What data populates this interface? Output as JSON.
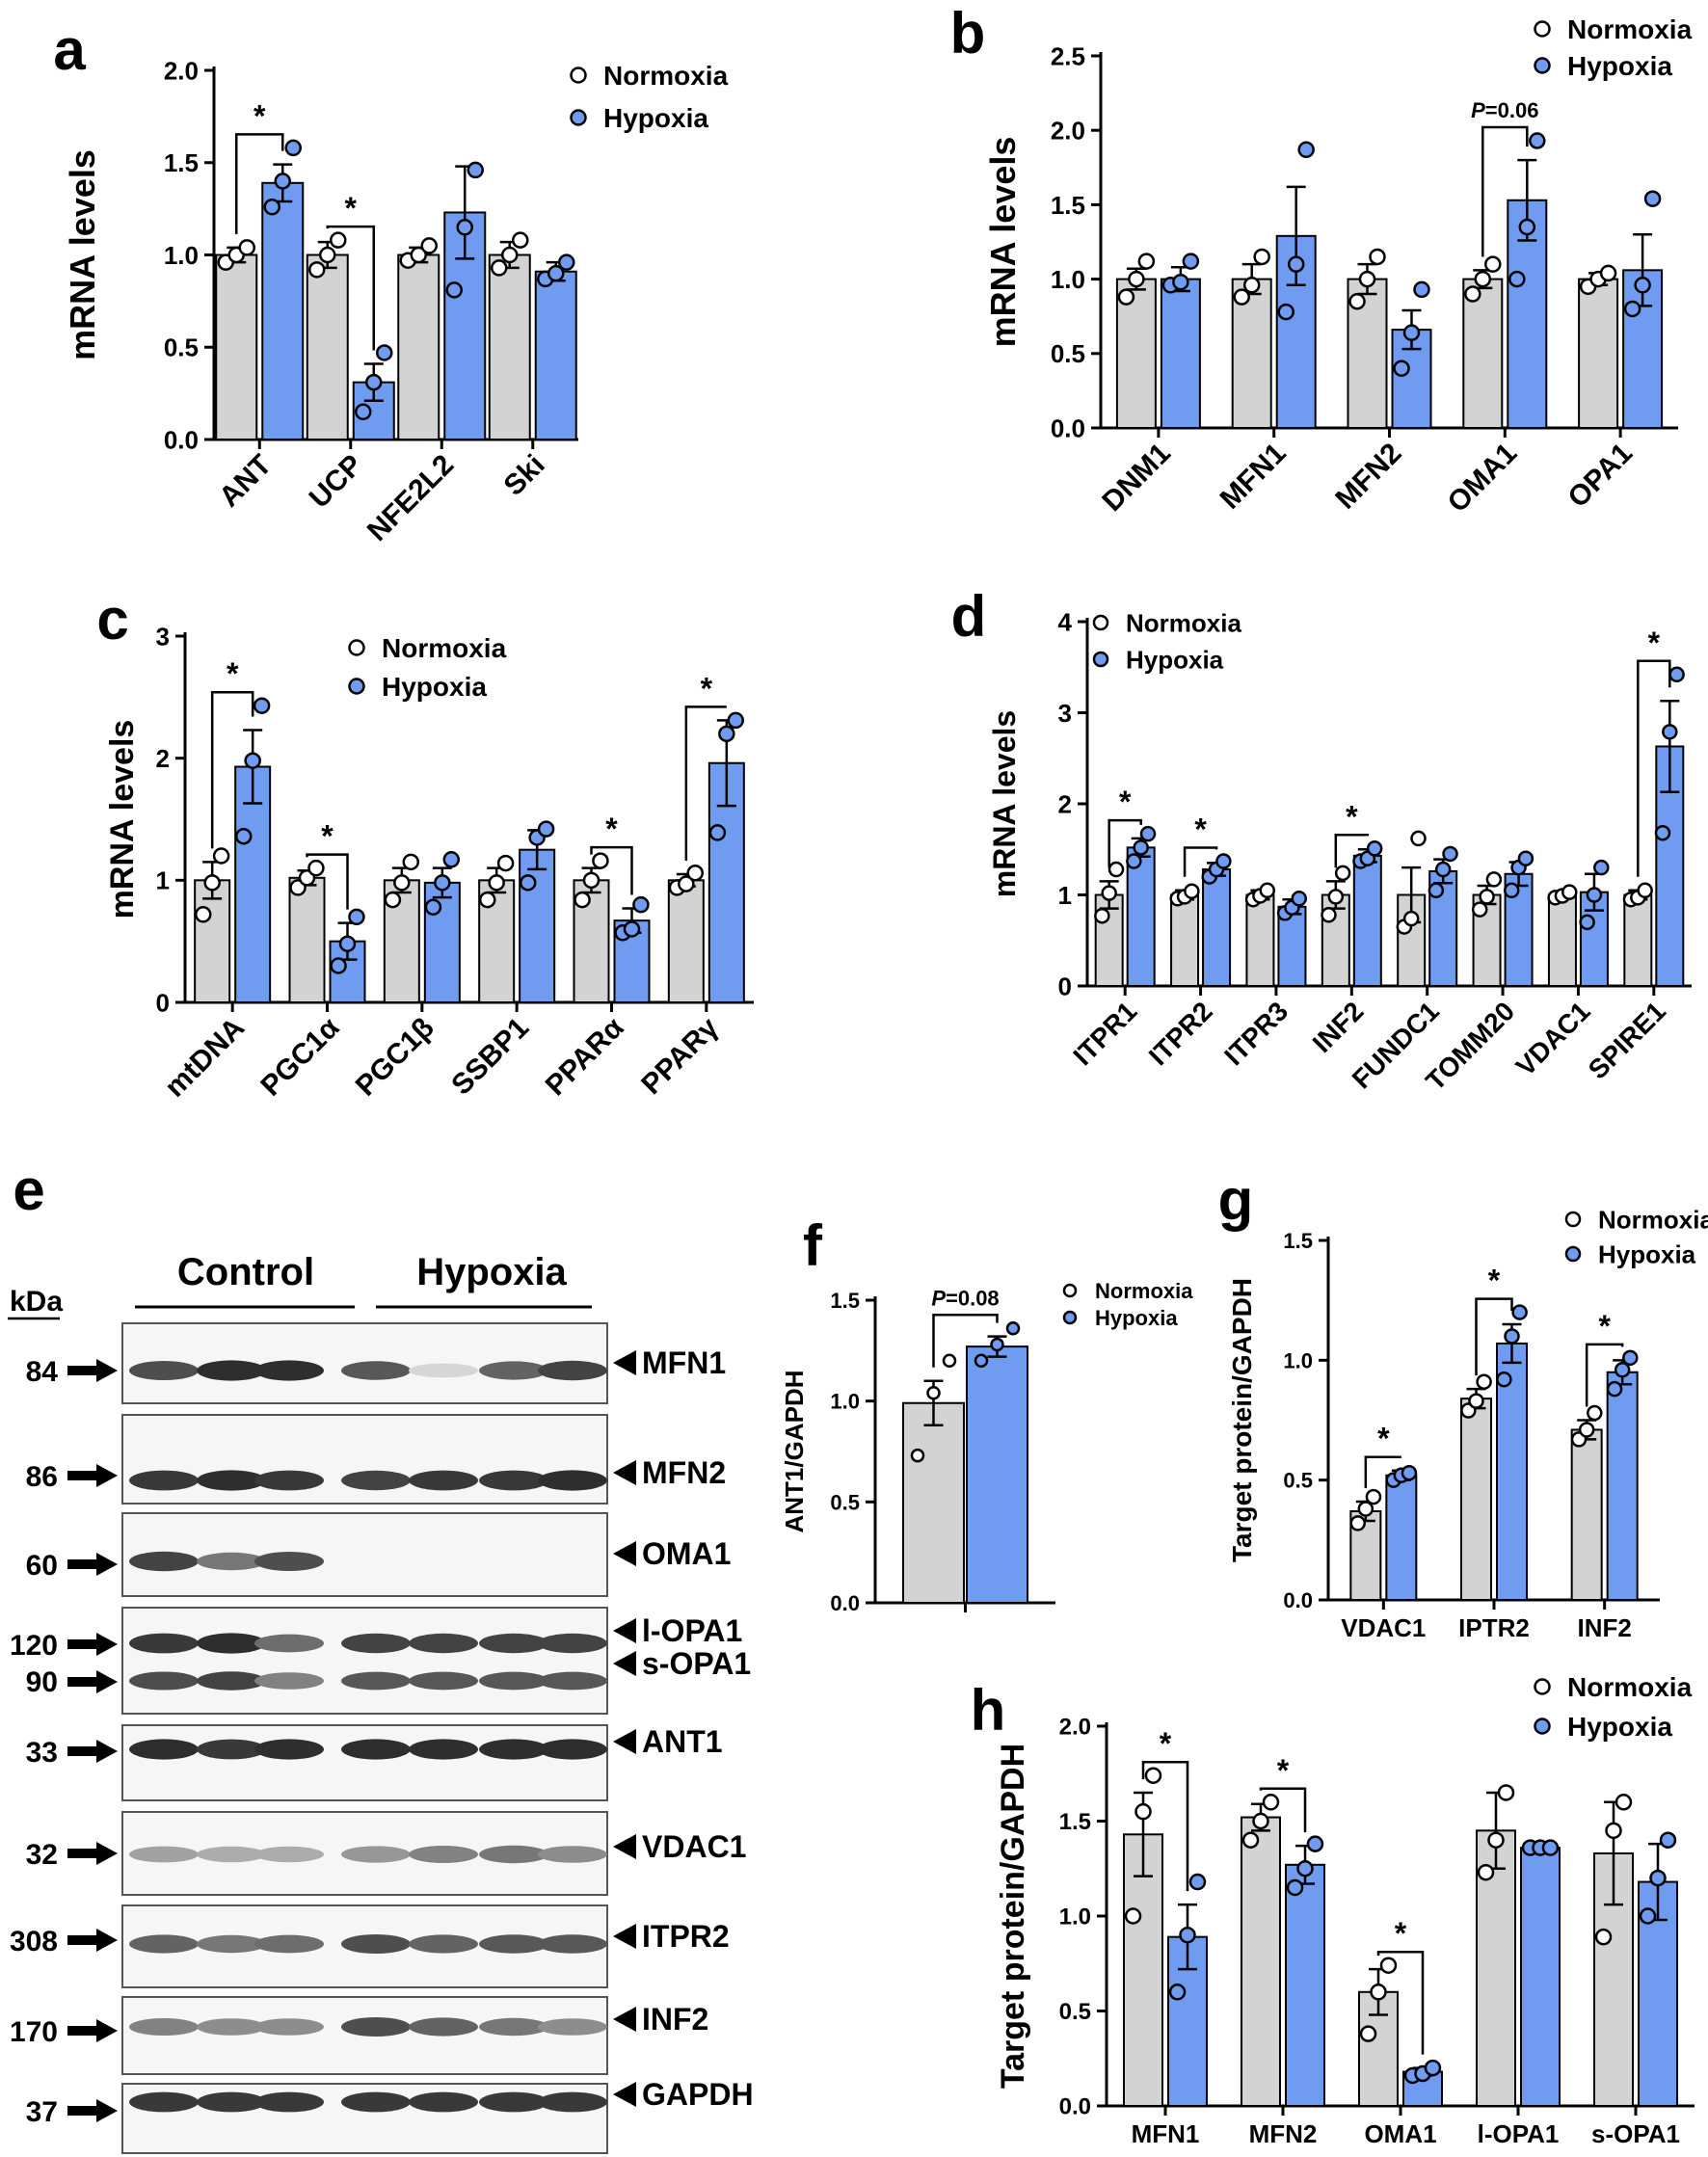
{
  "colors": {
    "normoxia": "#d3d3d3",
    "hypoxia": "#6f9cf0",
    "dot_normoxia": "#ffffff",
    "dot_hypoxia": "#6f9cf0"
  },
  "chart_data": [
    {
      "panel": "a",
      "type": "bar",
      "ylabel": "mRNA levels",
      "ylim": [
        0,
        2.0
      ],
      "yticks": [
        "0.0",
        "0.5",
        "1.0",
        "1.5",
        "2.0"
      ],
      "categories": [
        "ANT",
        "UCP",
        "NFE2L2",
        "Ski"
      ],
      "legend": [
        "Normoxia",
        "Hypoxia"
      ],
      "legend_position": "top-right",
      "series": [
        {
          "name": "Normoxia",
          "values": [
            1.0,
            1.0,
            1.0,
            1.0
          ],
          "sem": [
            0.04,
            0.07,
            0.04,
            0.07
          ],
          "points": [
            [
              0.96,
              1.0,
              1.04
            ],
            [
              0.92,
              1.0,
              1.08
            ],
            [
              0.97,
              1.0,
              1.05
            ],
            [
              0.93,
              1.0,
              1.08
            ]
          ]
        },
        {
          "name": "Hypoxia",
          "values": [
            1.39,
            0.31,
            1.23,
            0.91
          ],
          "sem": [
            0.1,
            0.1,
            0.25,
            0.05
          ],
          "points": [
            [
              1.26,
              1.4,
              1.58
            ],
            [
              0.15,
              0.31,
              0.47
            ],
            [
              0.81,
              1.15,
              1.46
            ],
            [
              0.87,
              0.9,
              0.96
            ]
          ]
        }
      ],
      "significance": [
        {
          "category": "ANT",
          "label": "*"
        },
        {
          "category": "UCP",
          "label": "*"
        }
      ]
    },
    {
      "panel": "b",
      "type": "bar",
      "ylabel": "mRNA levels",
      "ylim": [
        0,
        2.5
      ],
      "yticks": [
        "0.0",
        "0.5",
        "1.0",
        "1.5",
        "2.0",
        "2.5"
      ],
      "categories": [
        "DNM1",
        "MFN1",
        "MFN2",
        "OMA1",
        "OPA1"
      ],
      "legend": [
        "Normoxia",
        "Hypoxia"
      ],
      "legend_position": "top-right",
      "series": [
        {
          "name": "Normoxia",
          "values": [
            1.0,
            1.0,
            1.0,
            1.0,
            1.0
          ],
          "sem": [
            0.07,
            0.1,
            0.1,
            0.06,
            0.04
          ],
          "points": [
            [
              0.88,
              1.0,
              1.12
            ],
            [
              0.88,
              0.96,
              1.15
            ],
            [
              0.85,
              1.0,
              1.15
            ],
            [
              0.9,
              1.0,
              1.1
            ],
            [
              0.95,
              1.0,
              1.04
            ]
          ]
        },
        {
          "name": "Hypoxia",
          "values": [
            1.0,
            1.29,
            0.66,
            1.53,
            1.06
          ],
          "sem": [
            0.08,
            0.33,
            0.13,
            0.27,
            0.24
          ],
          "points": [
            [
              0.96,
              0.98,
              1.12
            ],
            [
              0.78,
              1.1,
              1.87
            ],
            [
              0.4,
              0.64,
              0.93
            ],
            [
              1.0,
              1.35,
              1.93
            ],
            [
              0.8,
              0.96,
              1.54
            ]
          ]
        }
      ],
      "significance": [
        {
          "category": "OMA1",
          "label": "P=0.06"
        }
      ]
    },
    {
      "panel": "c",
      "type": "bar",
      "ylabel": "mRNA levels",
      "ylim": [
        0,
        3
      ],
      "yticks": [
        "0",
        "1",
        "2",
        "3"
      ],
      "categories": [
        "mtDNA",
        "PGC1α",
        "PGC1β",
        "SSBP1",
        "PPARα",
        "PPARγ"
      ],
      "legend": [
        "Normoxia",
        "Hypoxia"
      ],
      "legend_position": "top-right",
      "series": [
        {
          "name": "Normoxia",
          "values": [
            1.0,
            1.02,
            1.0,
            1.0,
            1.0,
            1.0
          ],
          "sem": [
            0.15,
            0.06,
            0.1,
            0.1,
            0.1,
            0.05
          ],
          "points": [
            [
              0.72,
              0.98,
              1.2
            ],
            [
              0.94,
              1.02,
              1.1
            ],
            [
              0.84,
              0.98,
              1.15
            ],
            [
              0.84,
              0.98,
              1.14
            ],
            [
              0.84,
              1.0,
              1.16
            ],
            [
              0.94,
              0.97,
              1.06
            ]
          ]
        },
        {
          "name": "Hypoxia",
          "values": [
            1.93,
            0.5,
            0.98,
            1.25,
            0.67,
            1.96
          ],
          "sem": [
            0.3,
            0.15,
            0.12,
            0.16,
            0.1,
            0.35
          ],
          "points": [
            [
              1.36,
              1.98,
              2.43
            ],
            [
              0.3,
              0.48,
              0.7
            ],
            [
              0.78,
              0.98,
              1.17
            ],
            [
              0.98,
              1.35,
              1.42
            ],
            [
              0.57,
              0.6,
              0.8
            ],
            [
              1.39,
              2.2,
              2.31
            ]
          ]
        }
      ],
      "significance": [
        {
          "category": "mtDNA",
          "label": "*"
        },
        {
          "category": "PGC1α",
          "label": "*"
        },
        {
          "category": "PPARα",
          "label": "*"
        },
        {
          "category": "PPARγ",
          "label": "*"
        }
      ]
    },
    {
      "panel": "d",
      "type": "bar",
      "ylabel": "mRNA levels",
      "ylim": [
        0,
        4
      ],
      "yticks": [
        "0",
        "1",
        "2",
        "3",
        "4"
      ],
      "categories": [
        "ITPR1",
        "ITPR2",
        "ITPR3",
        "INF2",
        "FUNDC1",
        "TOMM20",
        "VDAC1",
        "SPIRE1"
      ],
      "legend": [
        "Normoxia",
        "Hypoxia"
      ],
      "legend_position": "top-left",
      "series": [
        {
          "name": "Normoxia",
          "values": [
            1.0,
            1.0,
            1.0,
            1.0,
            1.0,
            1.0,
            1.0,
            1.0
          ],
          "sem": [
            0.15,
            0.05,
            0.05,
            0.15,
            0.3,
            0.1,
            0.04,
            0.05
          ],
          "points": [
            [
              0.77,
              1.02,
              1.28
            ],
            [
              0.96,
              0.98,
              1.04
            ],
            [
              0.95,
              0.99,
              1.05
            ],
            [
              0.78,
              0.98,
              1.24
            ],
            [
              0.65,
              0.74,
              1.62
            ],
            [
              0.84,
              0.98,
              1.17
            ],
            [
              0.97,
              0.99,
              1.03
            ],
            [
              0.95,
              0.97,
              1.05
            ]
          ]
        },
        {
          "name": "Hypoxia",
          "values": [
            1.52,
            1.28,
            0.87,
            1.43,
            1.26,
            1.23,
            1.03,
            2.63
          ],
          "sem": [
            0.1,
            0.07,
            0.08,
            0.07,
            0.13,
            0.13,
            0.2,
            0.5
          ],
          "points": [
            [
              1.37,
              1.52,
              1.67
            ],
            [
              1.2,
              1.28,
              1.37
            ],
            [
              0.8,
              0.86,
              0.96
            ],
            [
              1.37,
              1.4,
              1.51
            ],
            [
              1.05,
              1.28,
              1.45
            ],
            [
              1.05,
              1.3,
              1.4
            ],
            [
              0.7,
              1.0,
              1.3
            ],
            [
              1.68,
              2.79,
              3.42
            ]
          ]
        }
      ],
      "significance": [
        {
          "category": "ITPR1",
          "label": "*"
        },
        {
          "category": "ITPR2",
          "label": "*"
        },
        {
          "category": "INF2",
          "label": "*"
        },
        {
          "category": "SPIRE1",
          "label": "*"
        }
      ]
    },
    {
      "panel": "f",
      "type": "bar",
      "ylabel": "ANT1/GAPDH",
      "ylim": [
        0,
        1.5
      ],
      "yticks": [
        "0.0",
        "0.5",
        "1.0",
        "1.5"
      ],
      "categories": [
        ""
      ],
      "legend": [
        "Normoxia",
        "Hypoxia"
      ],
      "legend_position": "top-right",
      "series": [
        {
          "name": "Normoxia",
          "values": [
            0.99
          ],
          "sem": [
            0.11
          ],
          "points": [
            [
              0.73,
              1.04,
              1.2
            ]
          ]
        },
        {
          "name": "Hypoxia",
          "values": [
            1.27
          ],
          "sem": [
            0.05
          ],
          "points": [
            [
              1.2,
              1.28,
              1.36
            ]
          ]
        }
      ],
      "significance": [
        {
          "category": "",
          "label": "P=0.08"
        }
      ]
    },
    {
      "panel": "g",
      "type": "bar",
      "ylabel": "Target protein/GAPDH",
      "ylim": [
        0,
        1.5
      ],
      "yticks": [
        "0.0",
        "0.5",
        "1.0",
        "1.5"
      ],
      "categories": [
        "VDAC1",
        "IPTR2",
        "INF2"
      ],
      "legend": [
        "Normoxia",
        "Hypoxia"
      ],
      "legend_position": "top-right",
      "series": [
        {
          "name": "Normoxia",
          "values": [
            0.37,
            0.84,
            0.71
          ],
          "sem": [
            0.04,
            0.04,
            0.04
          ],
          "points": [
            [
              0.32,
              0.38,
              0.43
            ],
            [
              0.79,
              0.83,
              0.91
            ],
            [
              0.67,
              0.71,
              0.78
            ]
          ]
        },
        {
          "name": "Hypoxia",
          "values": [
            0.52,
            1.07,
            0.95
          ],
          "sem": [
            0.02,
            0.08,
            0.05
          ],
          "points": [
            [
              0.5,
              0.52,
              0.53
            ],
            [
              0.92,
              1.1,
              1.2
            ],
            [
              0.88,
              0.96,
              1.01
            ]
          ]
        }
      ],
      "significance": [
        {
          "category": "VDAC1",
          "label": "*"
        },
        {
          "category": "IPTR2",
          "label": "*"
        },
        {
          "category": "INF2",
          "label": "*"
        }
      ]
    },
    {
      "panel": "h",
      "type": "bar",
      "ylabel": "Target protein/GAPDH",
      "ylim": [
        0,
        2.0
      ],
      "yticks": [
        "0.0",
        "0.5",
        "1.0",
        "1.5",
        "2.0"
      ],
      "categories": [
        "MFN1",
        "MFN2",
        "OMA1",
        "l-OPA1",
        "s-OPA1"
      ],
      "legend": [
        "Normoxia",
        "Hypoxia"
      ],
      "legend_position": "top-right",
      "series": [
        {
          "name": "Normoxia",
          "values": [
            1.43,
            1.52,
            0.6,
            1.45,
            1.33
          ],
          "sem": [
            0.22,
            0.07,
            0.12,
            0.2,
            0.27
          ],
          "points": [
            [
              1.0,
              1.55,
              1.74
            ],
            [
              1.4,
              1.5,
              1.6
            ],
            [
              0.38,
              0.6,
              0.74
            ],
            [
              1.23,
              1.4,
              1.65
            ],
            [
              0.89,
              1.45,
              1.6
            ]
          ]
        },
        {
          "name": "Hypoxia",
          "values": [
            0.89,
            1.27,
            0.18,
            1.36,
            1.18
          ],
          "sem": [
            0.17,
            0.1,
            0.02,
            0.0,
            0.2
          ],
          "points": [
            [
              0.6,
              0.9,
              1.18
            ],
            [
              1.15,
              1.25,
              1.38
            ],
            [
              0.16,
              0.17,
              0.2
            ],
            [
              1.36,
              1.36,
              1.36
            ],
            [
              1.0,
              1.2,
              1.4
            ]
          ]
        }
      ],
      "significance": [
        {
          "category": "MFN1",
          "label": "*"
        },
        {
          "category": "MFN2",
          "label": "*"
        },
        {
          "category": "OMA1",
          "label": "*"
        }
      ]
    }
  ],
  "panel_letters": [
    "a",
    "b",
    "c",
    "d",
    "e",
    "f",
    "g",
    "h"
  ],
  "blot": {
    "kda_label": "kDa",
    "group_labels": [
      "Control",
      "Hypoxia"
    ],
    "rows": [
      {
        "protein": "MFN1",
        "kda": "84",
        "intensities": [
          0.75,
          0.9,
          0.9,
          0.7,
          0.1,
          0.65,
          0.8
        ]
      },
      {
        "protein": "MFN2",
        "kda": "86",
        "intensities": [
          0.85,
          0.9,
          0.85,
          0.8,
          0.85,
          0.85,
          0.9
        ]
      },
      {
        "protein": "OMA1",
        "kda": "60",
        "intensities": [
          0.8,
          0.55,
          0.75,
          0.0,
          0.0,
          0.0,
          0.0
        ]
      },
      {
        "protein": "l-OPA1",
        "protein2": "s-OPA1",
        "kda": "120",
        "kda2": "90",
        "intensities": [
          0.85,
          0.9,
          0.6,
          0.8,
          0.8,
          0.8,
          0.8
        ]
      },
      {
        "protein": "ANT1",
        "kda": "33",
        "intensities": [
          0.9,
          0.85,
          0.9,
          0.9,
          0.9,
          0.9,
          0.9
        ]
      },
      {
        "protein": "VDAC1",
        "kda": "32",
        "intensities": [
          0.35,
          0.3,
          0.3,
          0.4,
          0.5,
          0.55,
          0.45
        ]
      },
      {
        "protein": "ITPR2",
        "kda": "308",
        "intensities": [
          0.65,
          0.55,
          0.6,
          0.75,
          0.65,
          0.7,
          0.7
        ]
      },
      {
        "protein": "INF2",
        "kda": "170",
        "intensities": [
          0.5,
          0.45,
          0.45,
          0.75,
          0.65,
          0.55,
          0.45
        ]
      },
      {
        "protein": "GAPDH",
        "kda": "37",
        "intensities": [
          0.85,
          0.85,
          0.85,
          0.85,
          0.85,
          0.85,
          0.85
        ]
      }
    ]
  }
}
